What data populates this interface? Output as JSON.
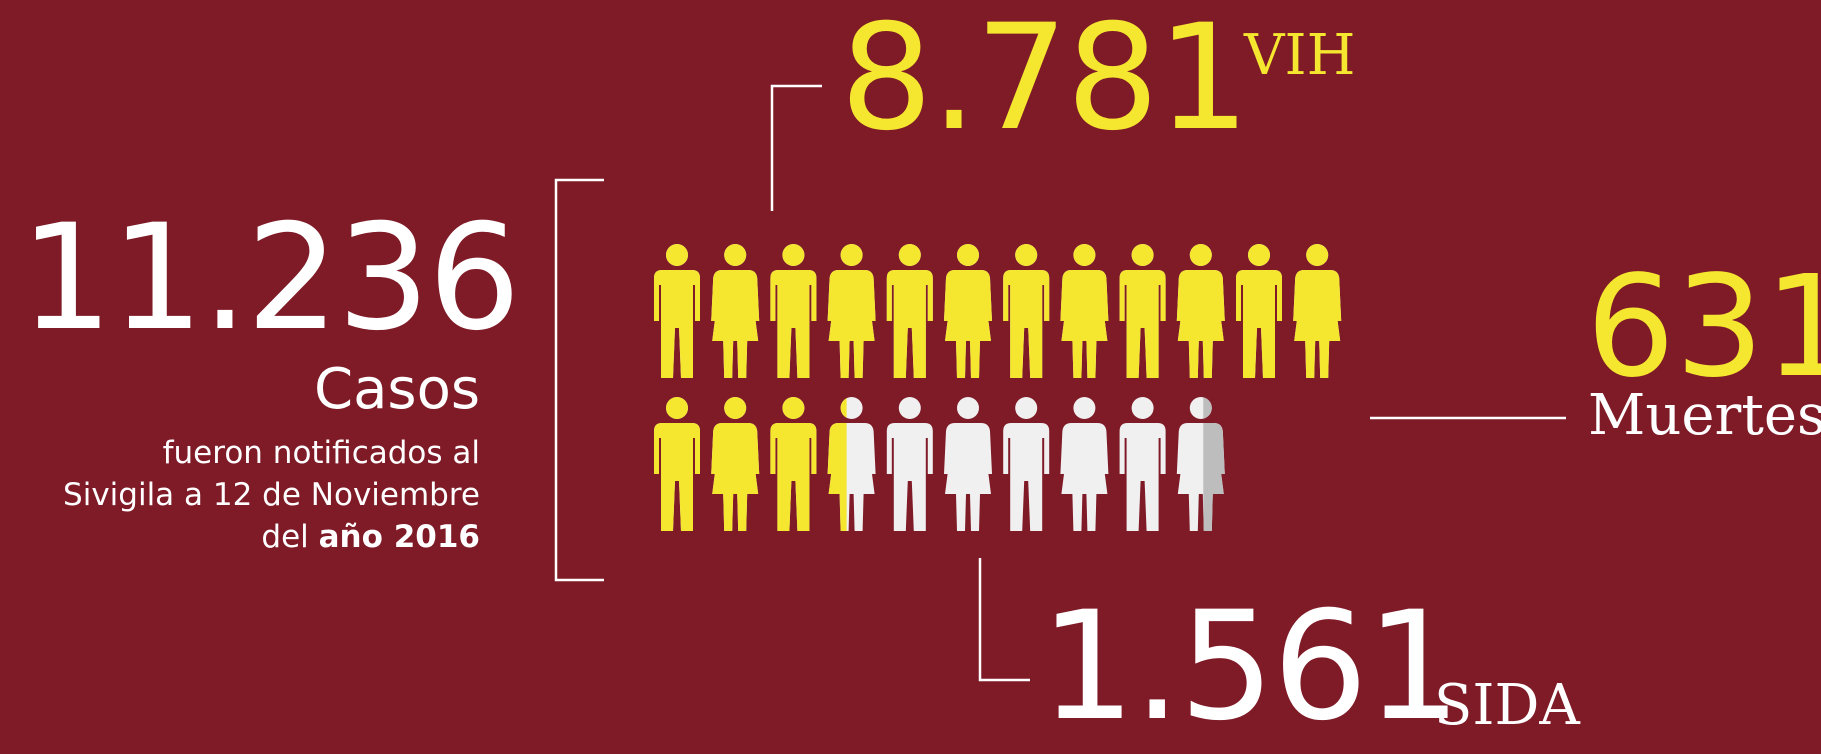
{
  "total": {
    "value": "11.236",
    "label": "Casos",
    "description_line1": "fueron notificados al",
    "description_line2": "Sivigila a 12 de Noviembre",
    "description_prefix": "del ",
    "description_bold": "año 2016"
  },
  "vih": {
    "value": "8.781",
    "label": "VIH"
  },
  "sida": {
    "value": "1.561",
    "label": "SIDA"
  },
  "deaths": {
    "value": "631",
    "label": "Muertes"
  },
  "pictogram": {
    "rows": [
      [
        "man",
        "woman",
        "man",
        "woman",
        "man",
        "woman",
        "man",
        "woman",
        "man",
        "woman",
        "man",
        "woman"
      ],
      [
        "man",
        "woman",
        "man",
        "woman",
        "man",
        "woman",
        "man",
        "woman",
        "man",
        "woman"
      ]
    ],
    "row_fill": [
      12,
      3.4
    ],
    "second_row_partial_last": 0.45,
    "colors": {
      "filled": "#f5e62f",
      "empty": "#f0f0f0",
      "empty_shade": "#bdbdbd"
    }
  },
  "colors": {
    "background": "#7f1a27",
    "accent": "#f5e62f",
    "text": "#ffffff",
    "line": "#ffffff"
  }
}
